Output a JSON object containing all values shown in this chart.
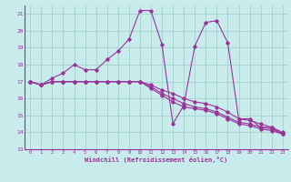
{
  "xlabel": "Windchill (Refroidissement éolien,°C)",
  "bg_color": "#c8ecec",
  "grid_color": "#aad4d4",
  "line_color": "#993399",
  "xlim": [
    -0.5,
    23.5
  ],
  "ylim": [
    13,
    21.5
  ],
  "yticks": [
    13,
    14,
    15,
    16,
    17,
    18,
    19,
    20,
    21
  ],
  "xticks": [
    0,
    1,
    2,
    3,
    4,
    5,
    6,
    7,
    8,
    9,
    10,
    11,
    12,
    13,
    14,
    15,
    16,
    17,
    18,
    19,
    20,
    21,
    22,
    23
  ],
  "series": [
    [
      17.0,
      16.8,
      17.2,
      17.5,
      18.0,
      17.7,
      17.7,
      18.3,
      18.8,
      19.5,
      21.2,
      21.2,
      19.2,
      14.5,
      15.6,
      19.1,
      20.5,
      20.6,
      19.3,
      14.8,
      14.8,
      14.3,
      14.3,
      13.9
    ],
    [
      17.0,
      16.8,
      17.0,
      17.0,
      17.0,
      17.0,
      17.0,
      17.0,
      17.0,
      17.0,
      17.0,
      16.8,
      16.5,
      16.3,
      16.0,
      15.8,
      15.7,
      15.5,
      15.2,
      14.8,
      14.7,
      14.5,
      14.3,
      14.0
    ],
    [
      17.0,
      16.8,
      17.0,
      17.0,
      17.0,
      17.0,
      17.0,
      17.0,
      17.0,
      17.0,
      17.0,
      16.7,
      16.3,
      16.0,
      15.7,
      15.5,
      15.4,
      15.2,
      14.9,
      14.6,
      14.5,
      14.3,
      14.2,
      13.9
    ],
    [
      17.0,
      16.8,
      17.0,
      17.0,
      17.0,
      17.0,
      17.0,
      17.0,
      17.0,
      17.0,
      17.0,
      16.6,
      16.2,
      15.8,
      15.5,
      15.4,
      15.3,
      15.1,
      14.8,
      14.5,
      14.4,
      14.2,
      14.1,
      13.9
    ]
  ]
}
